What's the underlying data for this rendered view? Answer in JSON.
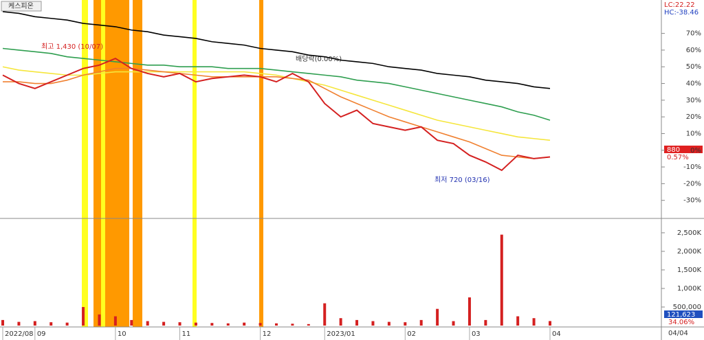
{
  "chart_data": [
    {
      "type": "line",
      "title": "케스피온",
      "ylim": [
        -40,
        90
      ],
      "yticks": [
        {
          "value": -30,
          "label": "-30%"
        },
        {
          "value": -20,
          "label": "-20%"
        },
        {
          "value": -10,
          "label": "-10%"
        },
        {
          "value": 0,
          "label": "0%"
        },
        {
          "value": 10,
          "label": "10%"
        },
        {
          "value": 20,
          "label": "20%"
        },
        {
          "value": 30,
          "label": "30%"
        },
        {
          "value": 40,
          "label": "40%"
        },
        {
          "value": 50,
          "label": "50%"
        },
        {
          "value": 60,
          "label": "60%"
        },
        {
          "value": 70,
          "label": "70%"
        }
      ],
      "corner_labels": [
        "LC:22.22",
        "HC:-38.46"
      ],
      "last_price": 880,
      "last_change": "0.57%",
      "annotations": [
        "최고 1,430 (10/07)",
        "배당락(0.00%)",
        "최저 720 (03/16)"
      ],
      "series": [
        {
          "color": "#000000",
          "values": [
            83,
            82,
            80,
            79,
            78,
            76,
            75,
            74,
            72,
            71,
            69,
            68,
            67,
            65,
            64,
            63,
            61,
            60,
            59,
            57,
            56,
            54,
            53,
            52,
            50,
            49,
            48,
            46,
            45,
            44,
            42,
            41,
            40,
            38,
            37
          ]
        },
        {
          "color": "#2e9e4f",
          "values": [
            61,
            60,
            59,
            58,
            56,
            55,
            54,
            53,
            52,
            51,
            51,
            50,
            50,
            50,
            49,
            49,
            49,
            48,
            47,
            46,
            45,
            44,
            42,
            41,
            40,
            38,
            36,
            34,
            32,
            30,
            28,
            26,
            23,
            21,
            18
          ]
        },
        {
          "color": "#f5e63c",
          "values": [
            50,
            48,
            47,
            46,
            45,
            45,
            46,
            47,
            47,
            47,
            47,
            47,
            47,
            47,
            47,
            47,
            46,
            45,
            43,
            41,
            39,
            36,
            33,
            30,
            27,
            24,
            21,
            18,
            16,
            14,
            12,
            10,
            8,
            7,
            6
          ]
        },
        {
          "color": "#f08030",
          "values": [
            41,
            41,
            40,
            40,
            42,
            45,
            47,
            49,
            49,
            48,
            47,
            46,
            45,
            44,
            44,
            44,
            44,
            44,
            43,
            42,
            37,
            32,
            28,
            24,
            20,
            17,
            14,
            11,
            8,
            5,
            1,
            -3,
            -4,
            -5,
            -4
          ]
        },
        {
          "color": "#d42020",
          "values": [
            45,
            40,
            37,
            41,
            45,
            49,
            51,
            55,
            49,
            46,
            44,
            46,
            41,
            43,
            44,
            45,
            44,
            41,
            46,
            41,
            28,
            20,
            24,
            16,
            14,
            12,
            14,
            6,
            4,
            -3,
            -7,
            -12,
            -3,
            -5,
            -4
          ]
        }
      ]
    },
    {
      "type": "bar",
      "categories": [
        "2022/08",
        null,
        "09",
        null,
        null,
        null,
        null,
        "10",
        null,
        null,
        null,
        "11",
        null,
        null,
        null,
        null,
        "12",
        null,
        null,
        null,
        "2023/01",
        null,
        null,
        null,
        null,
        "02",
        null,
        null,
        null,
        "03",
        null,
        null,
        null,
        null,
        "04"
      ],
      "extra_x_label": "04/04",
      "ylim": [
        0,
        2850000
      ],
      "yticks": [
        {
          "value": 500000,
          "label": "500,000"
        },
        {
          "value": 1000000,
          "label": "1,000K"
        },
        {
          "value": 1500000,
          "label": "1,500K"
        },
        {
          "value": 2000000,
          "label": "2,000K"
        },
        {
          "value": 2500000,
          "label": "2,500K"
        }
      ],
      "color": "#d42020",
      "values": [
        150000,
        100000,
        120000,
        90000,
        80000,
        500000,
        300000,
        250000,
        150000,
        120000,
        100000,
        90000,
        80000,
        70000,
        60000,
        80000,
        70000,
        60000,
        50000,
        40000,
        600000,
        200000,
        150000,
        120000,
        100000,
        90000,
        150000,
        450000,
        120000,
        760000,
        150000,
        2450000,
        250000,
        200000,
        121623
      ],
      "value_labels": [
        null,
        null,
        null,
        null,
        null,
        null,
        null,
        null,
        null,
        null,
        null,
        null,
        null,
        null,
        null,
        null,
        null,
        null,
        null,
        null,
        null,
        null,
        null,
        null,
        null,
        null,
        null,
        null,
        null,
        null,
        null,
        null,
        null,
        null,
        "121,623"
      ],
      "side_label": "34.06%"
    }
  ]
}
